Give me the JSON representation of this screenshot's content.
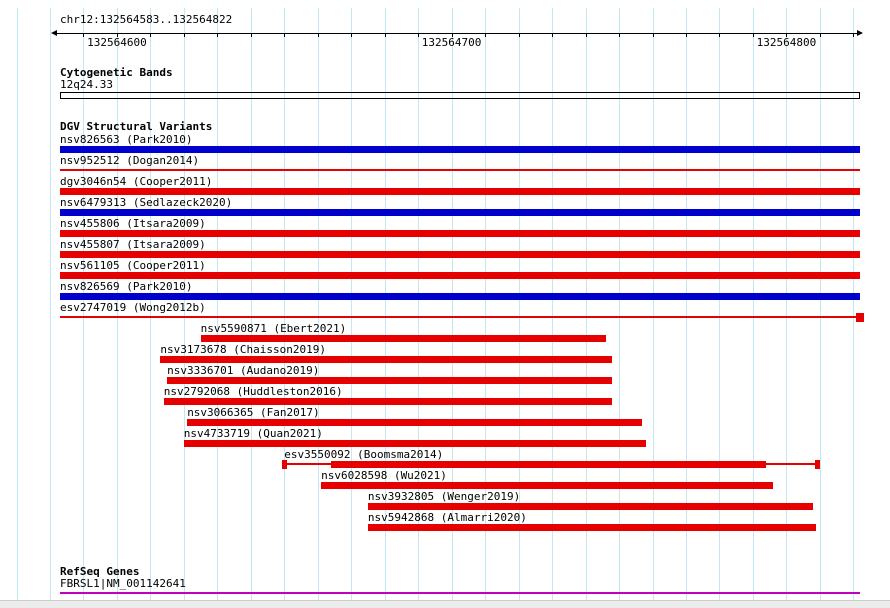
{
  "region": "chr12:132564583..132564822",
  "sections": {
    "cytobands_title": "Cytogenetic Bands",
    "cytoband_name": "12q24.33",
    "dgv_title": "DGV Structural Variants",
    "refseq_title": "RefSeq Genes",
    "refseq_gene": "FBRSL1|NM_001142641"
  },
  "colors": {
    "red": "#e60000",
    "blue": "#0000cc",
    "purple": "#c000c0",
    "grid": "#c3e7f3",
    "axis": "#000000"
  },
  "chart_data": {
    "type": "bar",
    "subtype": "genomic-interval-tracks",
    "region": "chr12:132564583..132564822",
    "x_axis": {
      "chrom": "chr12",
      "min": 132564583,
      "max": 132564822,
      "ticks": [
        {
          "bp": 132564600,
          "label": "132564600"
        },
        {
          "bp": 132564700,
          "label": "132564700"
        },
        {
          "bp": 132564800,
          "label": "132564800"
        }
      ]
    },
    "tracks": [
      {
        "label": "nsv826563 (Park2010)",
        "color": "blue",
        "type": "box",
        "start": 132564583,
        "end": 132564822,
        "spans_full_view": true
      },
      {
        "label": "nsv952512 (Dogan2014)",
        "color": "red",
        "type": "line",
        "start": 132564583,
        "end": 132564822,
        "spans_full_view": true
      },
      {
        "label": "dgv3046n54 (Cooper2011)",
        "color": "red",
        "type": "box",
        "start": 132564583,
        "end": 132564822,
        "spans_full_view": true
      },
      {
        "label": "nsv6479313 (Sedlazeck2020)",
        "color": "blue",
        "type": "box",
        "start": 132564583,
        "end": 132564822,
        "spans_full_view": true
      },
      {
        "label": "nsv455806 (Itsara2009)",
        "color": "red",
        "type": "box",
        "start": 132564583,
        "end": 132564822,
        "spans_full_view": true
      },
      {
        "label": "nsv455807 (Itsara2009)",
        "color": "red",
        "type": "box",
        "start": 132564583,
        "end": 132564822,
        "spans_full_view": true
      },
      {
        "label": "nsv561105 (Cooper2011)",
        "color": "red",
        "type": "box",
        "start": 132564583,
        "end": 132564822,
        "spans_full_view": true
      },
      {
        "label": "nsv826569 (Park2010)",
        "color": "blue",
        "type": "box",
        "start": 132564583,
        "end": 132564822,
        "spans_full_view": true
      },
      {
        "label": "esv2747019 (Wong2012b)",
        "color": "red",
        "type": "line-endcap",
        "start": 132564583,
        "end": 132564822,
        "spans_full_view": true
      },
      {
        "label": "nsv5590871 (Ebert2021)",
        "color": "red",
        "type": "box",
        "start": 132564625,
        "end": 132564746
      },
      {
        "label": "nsv3173678 (Chaisson2019)",
        "color": "red",
        "type": "box",
        "start": 132564613,
        "end": 132564748
      },
      {
        "label": "nsv3336701 (Audano2019)",
        "color": "red",
        "type": "box",
        "start": 132564615,
        "end": 132564748
      },
      {
        "label": "nsv2792068 (Huddleston2016)",
        "color": "red",
        "type": "box",
        "start": 132564614,
        "end": 132564748
      },
      {
        "label": "nsv3066365 (Fan2017)",
        "color": "red",
        "type": "box",
        "start": 132564621,
        "end": 132564757
      },
      {
        "label": "nsv4733719 (Quan2021)",
        "color": "red",
        "type": "box",
        "start": 132564620,
        "end": 132564758
      },
      {
        "label": "esv3550092 (Boomsma2014)",
        "color": "red",
        "type": "complex",
        "start": 132564650,
        "end": 132564809,
        "thick_start": 132564664,
        "thick_end": 132564794
      },
      {
        "label": "nsv6028598 (Wu2021)",
        "color": "red",
        "type": "box",
        "start": 132564661,
        "end": 132564796
      },
      {
        "label": "nsv3932805 (Wenger2019)",
        "color": "red",
        "type": "box",
        "start": 132564675,
        "end": 132564808
      },
      {
        "label": "nsv5942868 (Almarri2020)",
        "color": "red",
        "type": "box",
        "start": 132564675,
        "end": 132564809
      }
    ]
  }
}
